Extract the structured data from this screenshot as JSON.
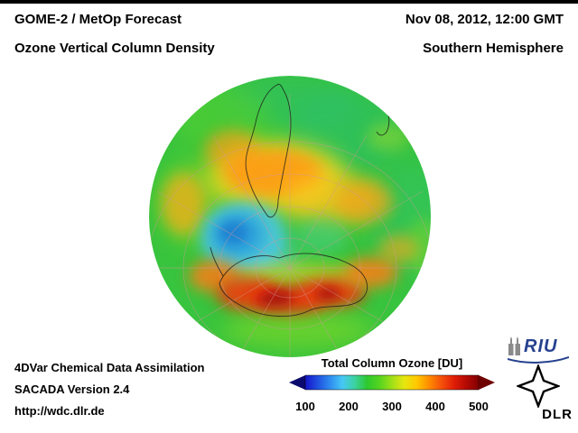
{
  "header": {
    "title": "GOME-2 / MetOp Forecast",
    "subtitle": "Ozone Vertical Column Density",
    "datetime": "Nov 08, 2012, 12:00 GMT",
    "hemisphere": "Southern Hemisphere"
  },
  "footer": {
    "line1": "4DVar Chemical Data Assimilation",
    "line2": "SACADA Version 2.4",
    "line3": "http://wdc.dlr.de"
  },
  "colorbar": {
    "title": "Total Column Ozone [DU]",
    "ticks": [
      "100",
      "200",
      "300",
      "400",
      "500"
    ],
    "gradient": [
      "#1414c8",
      "#2050e0",
      "#2f8cf0",
      "#46c8f5",
      "#3cd2a0",
      "#2ec82e",
      "#55d41e",
      "#a0e018",
      "#e6e60f",
      "#ffc800",
      "#ff8c00",
      "#f5500a",
      "#e11e07",
      "#b40a04",
      "#820000"
    ],
    "arrow_left": "#0a0a6e",
    "arrow_right": "#6e0000"
  },
  "logos": {
    "riu": "RIU",
    "dlr": "DLR"
  },
  "chart_data": {
    "type": "heatmap",
    "title": "Ozone Vertical Column Density",
    "subtitle": "GOME-2 / MetOp Forecast, Nov 08, 2012, 12:00 GMT",
    "projection": "orthographic, Southern Hemisphere",
    "colorbar_label": "Total Column Ozone [DU]",
    "value_range_DU": [
      100,
      500
    ],
    "ticks_DU": [
      100,
      200,
      300,
      400,
      500
    ],
    "regions": [
      {
        "name": "polar low / ozone hole remnant near Antarctic Peninsula",
        "approx_DU": 200
      },
      {
        "name": "mid-latitude red collar band around Antarctica",
        "approx_DU": 440
      },
      {
        "name": "subtropical orange band over South America / South Atlantic",
        "approx_DU": 360
      },
      {
        "name": "tropical background toward outer limb",
        "approx_DU": 280
      }
    ]
  }
}
